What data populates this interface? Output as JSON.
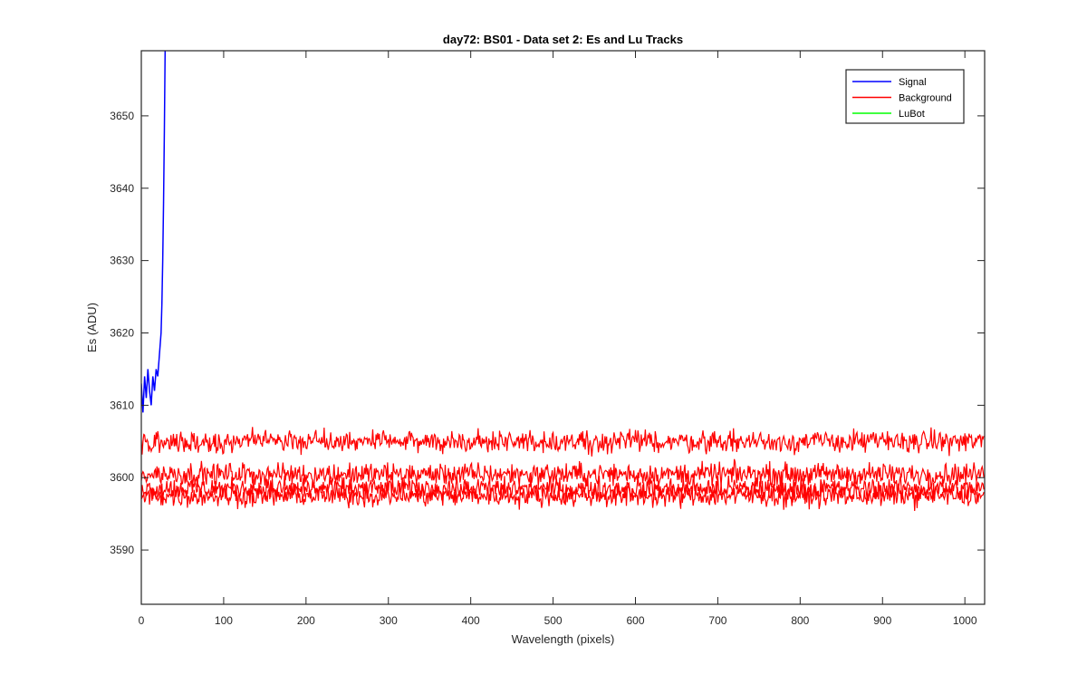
{
  "chart_data": {
    "type": "line",
    "title": "day72: BS01 - Data set 2: Es and Lu Tracks",
    "xlabel": "Wavelength (pixels)",
    "ylabel": "Es (ADU)",
    "xlim": [
      0,
      1024
    ],
    "ylim": [
      3582.5,
      3659
    ],
    "xticks": [
      0,
      100,
      200,
      300,
      400,
      500,
      600,
      700,
      800,
      900,
      1000
    ],
    "yticks": [
      3590,
      3600,
      3610,
      3620,
      3630,
      3640,
      3650
    ],
    "grid": false,
    "legend": {
      "location": "top-right",
      "entries": [
        "Signal",
        "Background",
        "LuBot"
      ]
    },
    "series": [
      {
        "name": "Signal",
        "color": "#0000ff",
        "x": [
          0,
          2,
          4,
          6,
          8,
          10,
          12,
          14,
          16,
          18,
          20,
          22,
          24,
          25,
          26,
          27,
          28,
          29
        ],
        "y": [
          3613,
          3609,
          3614,
          3611,
          3615,
          3612,
          3610,
          3614,
          3612,
          3615,
          3614,
          3617,
          3620,
          3624,
          3630,
          3638,
          3648,
          3660
        ]
      },
      {
        "name": "Background",
        "color": "#ff0000",
        "trace_means": [
          3605,
          3600.5,
          3598.5,
          3597.5
        ],
        "noise_amplitude": 1.4,
        "point_count": 1024
      },
      {
        "name": "LuBot",
        "color": "#00ff00",
        "x": [],
        "y": []
      }
    ]
  }
}
